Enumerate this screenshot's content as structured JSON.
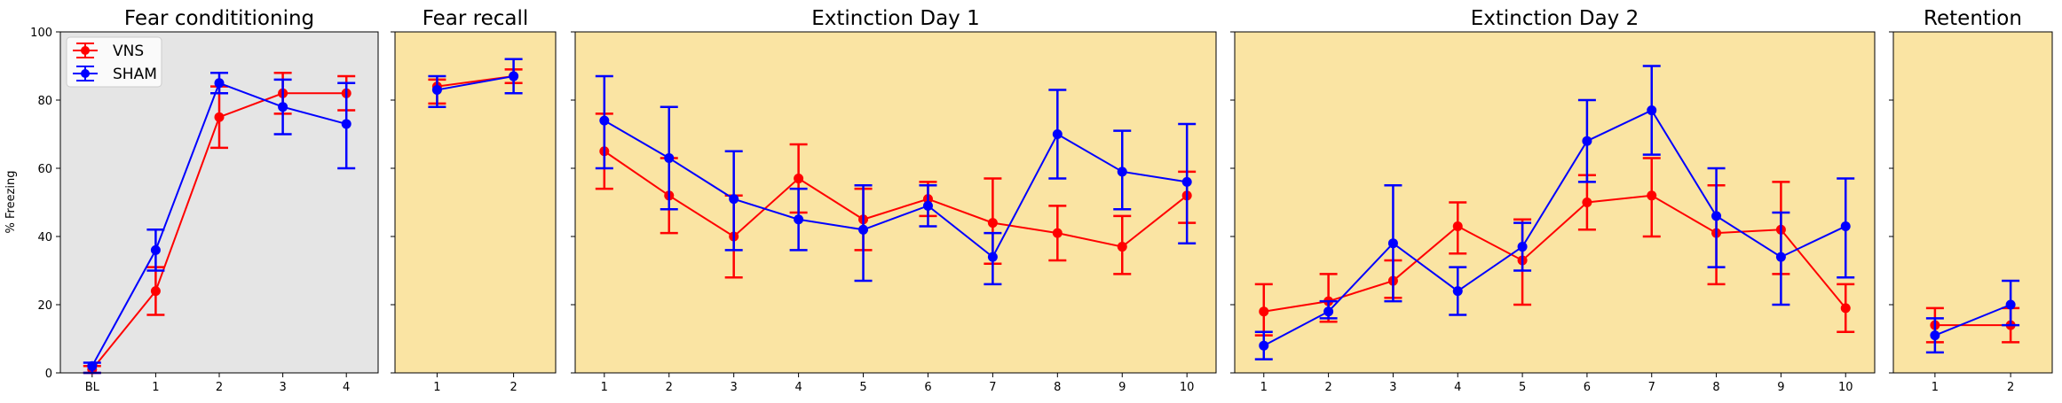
{
  "figure": {
    "ylabel": "% Freezing",
    "ylim": [
      0,
      100
    ],
    "yticks": [
      0,
      20,
      40,
      60,
      80,
      100
    ],
    "colors": {
      "VNS": "#ff0000",
      "SHAM": "#0000ff",
      "conditioning_bg": "#e5e5e5",
      "phase_bg": "#fae4a3"
    }
  },
  "chart_data": [
    {
      "type": "line",
      "title": "Fear condititioning",
      "x": [
        "BL",
        "1",
        "2",
        "3",
        "4"
      ],
      "grid": false,
      "legend": "top-left",
      "series": [
        {
          "name": "VNS",
          "values": [
            1,
            24,
            75,
            82,
            82
          ],
          "err_low": [
            0,
            17,
            66,
            76,
            77
          ],
          "err_high": [
            2,
            31,
            84,
            88,
            87
          ]
        },
        {
          "name": "SHAM",
          "values": [
            2,
            36,
            85,
            78,
            73
          ],
          "err_low": [
            0,
            30,
            82,
            70,
            60
          ],
          "err_high": [
            3,
            42,
            88,
            86,
            85
          ]
        }
      ]
    },
    {
      "type": "line",
      "title": "Fear recall",
      "x": [
        "1",
        "2"
      ],
      "grid": false,
      "series": [
        {
          "name": "VNS",
          "values": [
            84,
            87
          ],
          "err_low": [
            79,
            85
          ],
          "err_high": [
            86,
            89
          ]
        },
        {
          "name": "SHAM",
          "values": [
            83,
            87
          ],
          "err_low": [
            78,
            82
          ],
          "err_high": [
            87,
            92
          ]
        }
      ]
    },
    {
      "type": "line",
      "title": "Extinction Day 1",
      "x": [
        "1",
        "2",
        "3",
        "4",
        "5",
        "6",
        "7",
        "8",
        "9",
        "10"
      ],
      "grid": false,
      "series": [
        {
          "name": "VNS",
          "values": [
            65,
            52,
            40,
            57,
            45,
            51,
            44,
            41,
            37,
            52
          ],
          "err_low": [
            54,
            41,
            28,
            47,
            36,
            46,
            32,
            33,
            29,
            44
          ],
          "err_high": [
            76,
            63,
            52,
            67,
            54,
            56,
            57,
            49,
            46,
            59
          ]
        },
        {
          "name": "SHAM",
          "values": [
            74,
            63,
            51,
            45,
            42,
            49,
            34,
            70,
            59,
            56
          ],
          "err_low": [
            60,
            48,
            36,
            36,
            27,
            43,
            26,
            57,
            48,
            38
          ],
          "err_high": [
            87,
            78,
            65,
            54,
            55,
            55,
            41,
            83,
            71,
            73
          ]
        }
      ]
    },
    {
      "type": "line",
      "title": "Extinction Day 2",
      "x": [
        "1",
        "2",
        "3",
        "4",
        "5",
        "6",
        "7",
        "8",
        "9",
        "10"
      ],
      "grid": false,
      "series": [
        {
          "name": "VNS",
          "values": [
            18,
            21,
            27,
            43,
            33,
            50,
            52,
            41,
            42,
            19
          ],
          "err_low": [
            11,
            15,
            22,
            35,
            20,
            42,
            40,
            26,
            29,
            12
          ],
          "err_high": [
            26,
            29,
            33,
            50,
            45,
            58,
            63,
            55,
            56,
            26
          ]
        },
        {
          "name": "SHAM",
          "values": [
            8,
            18,
            38,
            24,
            37,
            68,
            77,
            46,
            34,
            43
          ],
          "err_low": [
            4,
            16,
            21,
            17,
            30,
            56,
            64,
            31,
            20,
            28
          ],
          "err_high": [
            12,
            21,
            55,
            31,
            44,
            80,
            90,
            60,
            47,
            57
          ]
        }
      ]
    },
    {
      "type": "line",
      "title": "Retention",
      "x": [
        "1",
        "2"
      ],
      "grid": false,
      "series": [
        {
          "name": "VNS",
          "values": [
            14,
            14
          ],
          "err_low": [
            9,
            9
          ],
          "err_high": [
            19,
            19
          ]
        },
        {
          "name": "SHAM",
          "values": [
            11,
            20
          ],
          "err_low": [
            6,
            14
          ],
          "err_high": [
            16,
            27
          ]
        }
      ]
    }
  ]
}
